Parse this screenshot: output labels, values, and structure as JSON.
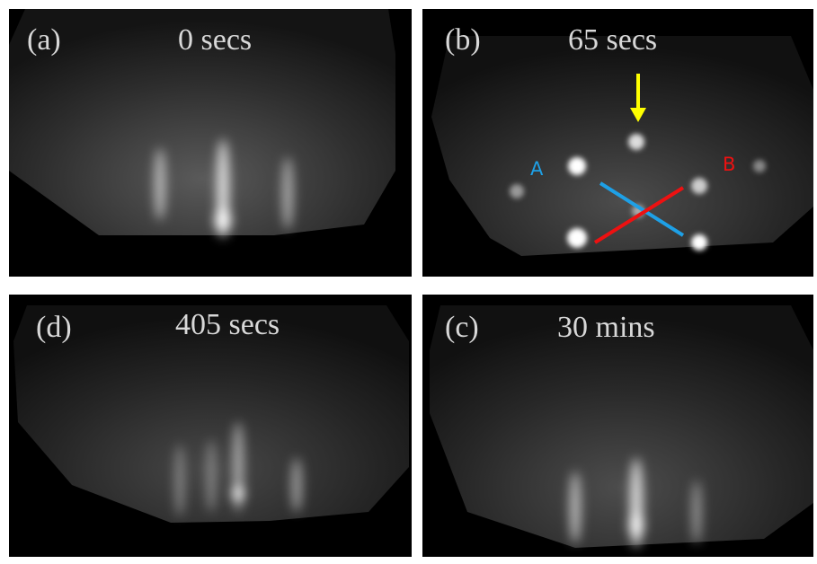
{
  "panels": [
    {
      "label": "(a)",
      "caption": "0 secs"
    },
    {
      "label": "(b)",
      "caption": "65 secs",
      "annotations": [
        "A",
        "B"
      ]
    },
    {
      "label": "(d)",
      "caption": "405 secs"
    },
    {
      "label": "(c)",
      "caption": "30 mins"
    }
  ]
}
